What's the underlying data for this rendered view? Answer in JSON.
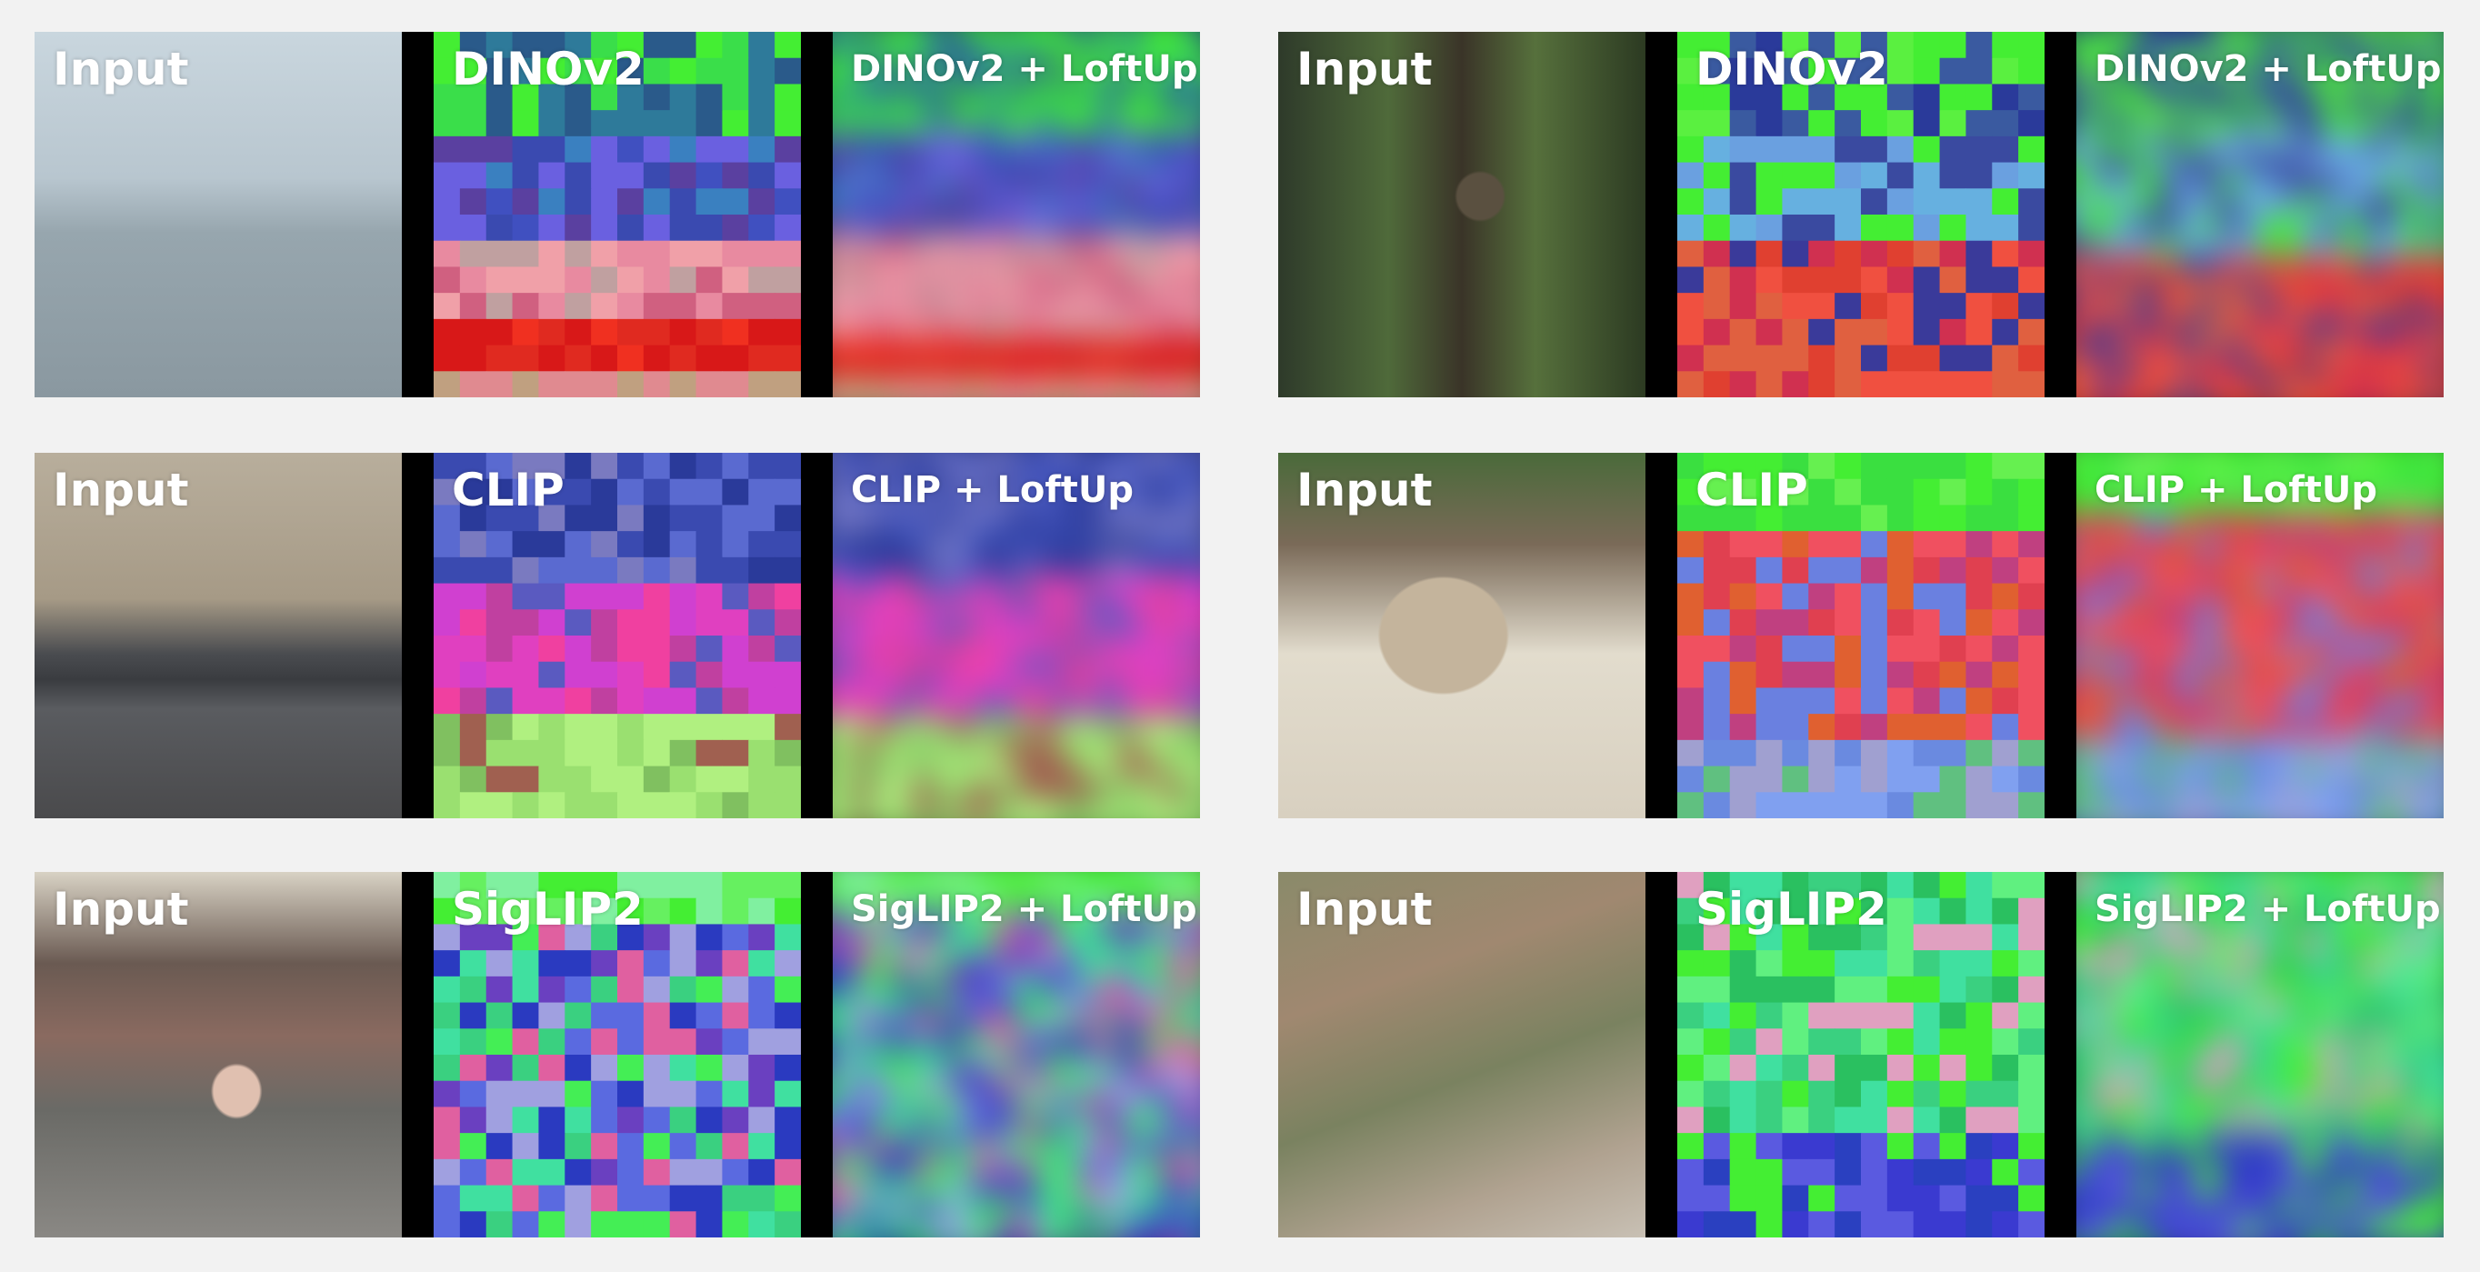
{
  "groups": [
    {
      "labels": [
        "Input",
        "DINOv2",
        "DINOv2 + LoftUp"
      ]
    },
    {
      "labels": [
        "Input",
        "DINOv2",
        "DINOv2 + LoftUp"
      ]
    },
    {
      "labels": [
        "Input",
        "CLIP",
        "CLIP + LoftUp"
      ]
    },
    {
      "labels": [
        "Input",
        "CLIP",
        "CLIP + LoftUp"
      ]
    },
    {
      "labels": [
        "Input",
        "SigLIP2",
        "SigLIP2 + LoftUp"
      ]
    },
    {
      "labels": [
        "Input",
        "SigLIP2",
        "SigLIP2 + LoftUp"
      ]
    }
  ]
}
